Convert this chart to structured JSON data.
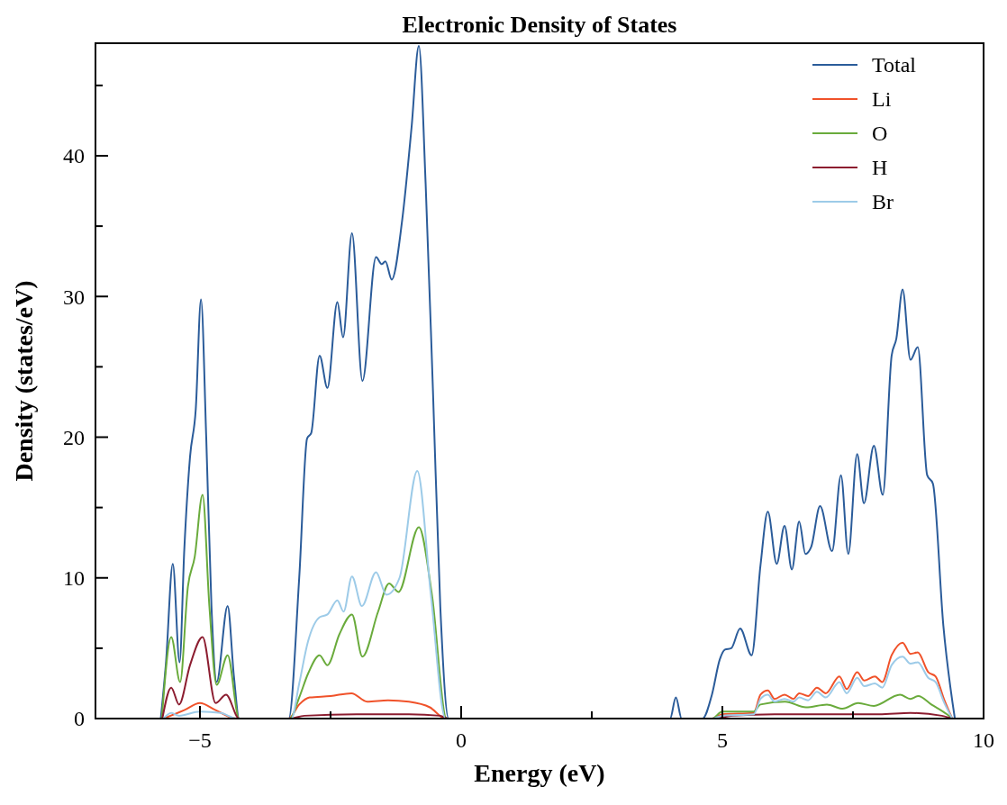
{
  "chart_data": {
    "type": "line",
    "title": "Electronic Density of States",
    "xlabel": "Energy (eV)",
    "ylabel": "Density (states/eV)",
    "xlim": [
      -7,
      10
    ],
    "ylim": [
      0,
      48
    ],
    "xticks": [
      {
        "value": -5,
        "label": "−5"
      },
      {
        "value": -2.5,
        "label": null
      },
      0,
      {
        "value": 2.5,
        "label": null
      },
      5,
      {
        "value": 7.5,
        "label": null
      },
      10
    ],
    "yticks": [
      0,
      {
        "value": 5,
        "label": null
      },
      10,
      {
        "value": 15,
        "label": null
      },
      20,
      {
        "value": 25,
        "label": null
      },
      30,
      {
        "value": 35,
        "label": null
      },
      40,
      {
        "value": 45,
        "label": null
      }
    ],
    "grid": false,
    "legend": "top right",
    "marker": "none",
    "line_style": "solid",
    "series": [
      {
        "name": "Total",
        "color": "#2b5c9a",
        "x": [
          -5.75,
          -5.65,
          -5.52,
          -5.39,
          -5.3,
          -5.19,
          -5.08,
          -4.98,
          -4.88,
          -4.78,
          -4.68,
          -4.47,
          -4.35,
          -4.25,
          -3.3,
          -3.1,
          -2.95,
          -2.87,
          -2.71,
          -2.56,
          -2.37,
          -2.26,
          -2.09,
          -1.89,
          -1.63,
          -1.52,
          -1.45,
          -1.33,
          -1.13,
          -0.95,
          -0.81,
          -0.68,
          -0.54,
          -0.4,
          -0.24,
          4.0,
          4.11,
          4.22,
          4.62,
          4.8,
          4.95,
          5.05,
          5.17,
          5.34,
          5.56,
          5.73,
          5.87,
          6.04,
          6.19,
          6.33,
          6.47,
          6.59,
          6.7,
          6.87,
          7.1,
          7.27,
          7.41,
          7.58,
          7.71,
          7.9,
          8.07,
          8.24,
          8.33,
          8.45,
          8.6,
          8.74,
          8.92,
          9.03,
          9.23,
          9.45
        ],
        "values": [
          0,
          4,
          11,
          4,
          12,
          18.6,
          22,
          29.8,
          20,
          8,
          2.6,
          8,
          3,
          0,
          0,
          10,
          19.9,
          20.3,
          25.8,
          23.5,
          29.6,
          27.1,
          34.5,
          24,
          32.8,
          32.3,
          32.5,
          31.2,
          35.4,
          42,
          47.8,
          38,
          23.3,
          8,
          0,
          0,
          1.5,
          0,
          0,
          1.7,
          4.2,
          4.9,
          5,
          6.4,
          4.5,
          10.9,
          14.7,
          11,
          13.7,
          10.6,
          14,
          11.7,
          12.2,
          15.1,
          11.9,
          17.3,
          11.7,
          18.8,
          15.3,
          19.4,
          15.9,
          25.8,
          27,
          30.5,
          25.5,
          26.4,
          17.3,
          16.7,
          6.6,
          0
        ]
      },
      {
        "name": "Li",
        "color": "#f0522a",
        "x": [
          -5.7,
          -5.3,
          -5.0,
          -4.7,
          -4.3,
          -3.3,
          -3.1,
          -2.9,
          -2.5,
          -2.1,
          -1.8,
          -1.4,
          -1.0,
          -0.6,
          -0.3,
          4.8,
          5.0,
          5.6,
          5.73,
          5.87,
          6.0,
          6.19,
          6.36,
          6.47,
          6.64,
          6.81,
          6.98,
          7.24,
          7.38,
          7.58,
          7.72,
          7.92,
          8.06,
          8.24,
          8.45,
          8.6,
          8.74,
          8.94,
          9.08,
          9.25,
          9.4
        ],
        "values": [
          0,
          0.6,
          1.1,
          0.6,
          0,
          0,
          1,
          1.5,
          1.6,
          1.8,
          1.2,
          1.3,
          1.2,
          0.8,
          0,
          0,
          0.3,
          0.4,
          1.7,
          2,
          1.4,
          1.7,
          1.4,
          1.8,
          1.6,
          2.2,
          1.8,
          3,
          2.1,
          3.3,
          2.7,
          3,
          2.6,
          4.5,
          5.4,
          4.6,
          4.7,
          3.3,
          3,
          1.3,
          0
        ]
      },
      {
        "name": "O",
        "color": "#6aab3c",
        "x": [
          -5.73,
          -5.55,
          -5.38,
          -5.23,
          -5.1,
          -4.95,
          -4.82,
          -4.68,
          -4.47,
          -4.25,
          -3.28,
          -3.1,
          -2.93,
          -2.71,
          -2.56,
          -2.33,
          -2.09,
          -1.89,
          -1.59,
          -1.38,
          -1.2,
          -0.81,
          -0.56,
          -0.28,
          4.8,
          5.0,
          5.6,
          5.73,
          6.2,
          6.6,
          7.0,
          7.3,
          7.6,
          7.9,
          8.4,
          8.6,
          8.75,
          9.0,
          9.3,
          9.4
        ],
        "values": [
          0,
          5.8,
          2.6,
          9.4,
          11.5,
          15.9,
          8,
          2.4,
          4.5,
          0,
          0,
          1.5,
          3.2,
          4.5,
          3.8,
          6,
          7.4,
          4.4,
          7.6,
          9.6,
          9,
          13.6,
          8.8,
          0,
          0,
          0.5,
          0.5,
          1,
          1.2,
          0.8,
          1,
          0.7,
          1.1,
          0.9,
          1.7,
          1.4,
          1.6,
          1,
          0.3,
          0
        ]
      },
      {
        "name": "H",
        "color": "#8c1d30",
        "x": [
          -5.72,
          -5.55,
          -5.4,
          -5.19,
          -4.95,
          -4.7,
          -4.5,
          -4.25,
          -3.3,
          -3.0,
          -2.0,
          -1.0,
          -0.4,
          -0.25,
          4.8,
          5.2,
          6.0,
          7.0,
          8.0,
          8.6,
          9.2,
          9.4
        ],
        "values": [
          0,
          2.2,
          1,
          3.8,
          5.8,
          1.1,
          1.7,
          0,
          0,
          0.2,
          0.3,
          0.3,
          0.2,
          0,
          0,
          0.2,
          0.3,
          0.3,
          0.3,
          0.4,
          0.2,
          0
        ]
      },
      {
        "name": "Br",
        "color": "#9dcbe8",
        "x": [
          -5.7,
          -5.55,
          -5.4,
          -5.0,
          -4.6,
          -4.3,
          -3.25,
          -3.1,
          -2.93,
          -2.71,
          -2.56,
          -2.37,
          -2.25,
          -2.09,
          -1.9,
          -1.63,
          -1.43,
          -1.18,
          -0.84,
          -0.58,
          -0.3,
          4.8,
          5.0,
          5.6,
          5.73,
          5.87,
          6.0,
          6.19,
          6.36,
          6.47,
          6.64,
          6.81,
          6.98,
          7.24,
          7.38,
          7.58,
          7.72,
          7.92,
          8.06,
          8.24,
          8.45,
          8.6,
          8.74,
          8.94,
          9.08,
          9.25,
          9.4
        ],
        "values": [
          0,
          0.4,
          0.2,
          0.5,
          0.4,
          0,
          0,
          2.5,
          5.5,
          7.2,
          7.4,
          8.4,
          7.6,
          10.1,
          8,
          10.4,
          8.8,
          10,
          17.6,
          8.8,
          0,
          0,
          0.2,
          0.3,
          1.4,
          1.7,
          1.2,
          1.4,
          1.2,
          1.5,
          1.3,
          1.9,
          1.5,
          2.6,
          1.8,
          2.9,
          2.3,
          2.5,
          2.2,
          3.8,
          4.4,
          3.9,
          4,
          2.9,
          2.6,
          1.1,
          0
        ]
      }
    ]
  }
}
